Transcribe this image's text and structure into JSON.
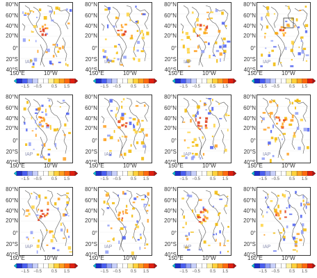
{
  "panels": [
    {
      "id": "p1",
      "iap": "IAP",
      "box": false
    },
    {
      "id": "p2",
      "iap": "IAP",
      "box": false
    },
    {
      "id": "p3",
      "iap": "IAP",
      "box": false
    },
    {
      "id": "p4",
      "iap": "IAP",
      "box": true
    },
    {
      "id": "p5",
      "iap": "IAP",
      "box": false
    },
    {
      "id": "p6",
      "iap": "IAP",
      "box": false
    },
    {
      "id": "p7",
      "iap": "IAP",
      "box": false
    },
    {
      "id": "p8",
      "iap": "IAP",
      "box": false
    },
    {
      "id": "p9",
      "iap": "IAP",
      "box": false
    },
    {
      "id": "p10",
      "iap": "IAP",
      "box": false
    },
    {
      "id": "p11",
      "iap": "IAP",
      "box": false
    },
    {
      "id": "p12",
      "iap": "IAP",
      "box": false
    }
  ],
  "lat_labels": [
    "80°N",
    "60°N",
    "40°N",
    "20°N",
    "0°",
    "20°S",
    "40°S"
  ],
  "lon_labels": [
    "150°E",
    "10°W"
  ],
  "colorbar": {
    "ticks": [
      "−1.5",
      "−0.5",
      "0.5",
      "1.5"
    ],
    "colors": [
      "#00c0e0",
      "#1f2fc8",
      "#4a5ef0",
      "#8f9ef6",
      "#c8d0fa",
      "#ffffff",
      "#ffffff",
      "#fff2a0",
      "#ffd23c",
      "#ffa020",
      "#ff6a10",
      "#e02010",
      "#b80c0c"
    ]
  },
  "colors": {
    "positive": "#f2b800",
    "strong_positive": "#e04020",
    "negative": "#4a5ef0",
    "coast": "#555555",
    "frame": "#333333"
  }
}
